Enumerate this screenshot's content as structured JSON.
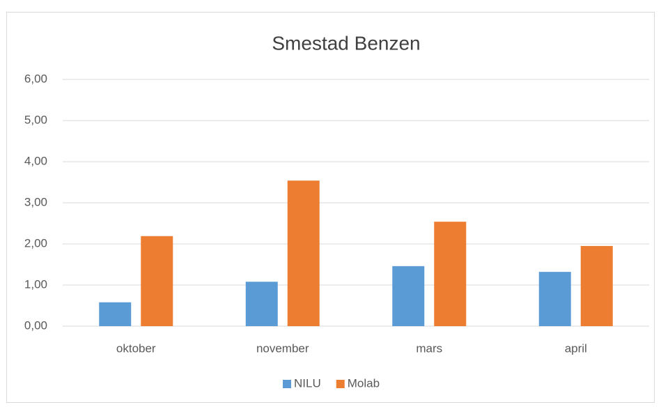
{
  "chart_data": {
    "type": "bar",
    "title": "Smestad Benzen",
    "categories": [
      "oktober",
      "november",
      "mars",
      "april"
    ],
    "series": [
      {
        "name": "NILU",
        "color": "#5b9bd5",
        "values": [
          0.58,
          1.08,
          1.46,
          1.32
        ]
      },
      {
        "name": "Molab",
        "color": "#ed7d31",
        "values": [
          2.19,
          3.54,
          2.54,
          1.95
        ]
      }
    ],
    "ylim": [
      0,
      6
    ],
    "yticks": [
      {
        "value": 0,
        "label": "0,00"
      },
      {
        "value": 1,
        "label": "1,00"
      },
      {
        "value": 2,
        "label": "2,00"
      },
      {
        "value": 3,
        "label": "3,00"
      },
      {
        "value": 4,
        "label": "4,00"
      },
      {
        "value": 5,
        "label": "5,00"
      },
      {
        "value": 6,
        "label": "6,00"
      }
    ],
    "grid": true,
    "legend": "bottom"
  }
}
